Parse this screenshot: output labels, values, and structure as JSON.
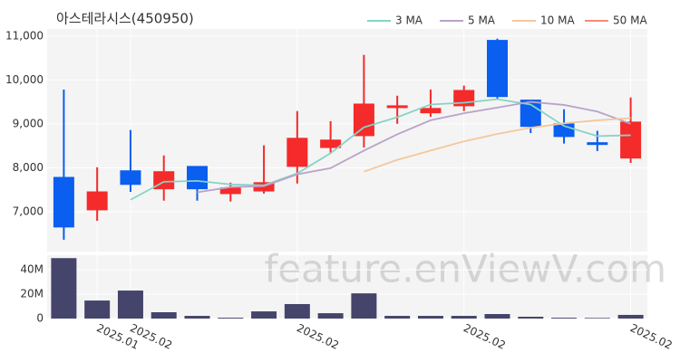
{
  "chart_data": [
    {
      "type": "candlestick",
      "title": "아스테라시스(450950)",
      "categories": [
        null,
        "2025.01",
        "2025.02",
        null,
        null,
        null,
        null,
        "2025.02",
        null,
        null,
        null,
        null,
        "2025.02",
        null,
        null,
        null,
        null,
        "2025.02"
      ],
      "open": [
        7780,
        7040,
        7930,
        7520,
        8030,
        7410,
        7470,
        8030,
        8460,
        8730,
        9370,
        9250,
        9410,
        10900,
        9540,
        9000,
        8570,
        8220
      ],
      "high": [
        9780,
        8010,
        8860,
        8280,
        8030,
        7660,
        8510,
        9290,
        9060,
        10570,
        9640,
        9780,
        9870,
        10940,
        9540,
        9330,
        8840,
        9600
      ],
      "low": [
        6360,
        6790,
        7450,
        7250,
        7250,
        7230,
        7410,
        7640,
        8320,
        8460,
        9000,
        9160,
        9290,
        9560,
        8790,
        8550,
        8380,
        8110
      ],
      "close": [
        6650,
        7450,
        7620,
        7910,
        7520,
        7540,
        7660,
        8670,
        8630,
        9450,
        9410,
        9350,
        9760,
        9620,
        8940,
        8710,
        8560,
        9040
      ],
      "up_color": "#f52a2a",
      "down_color": "#0a5ef0",
      "series": [
        {
          "name": "3 MA",
          "color": "#86d3c6",
          "values": [
            null,
            null,
            7270,
            7680,
            7700,
            7620,
            7600,
            7870,
            8330,
            8920,
            9150,
            9440,
            9480,
            9560,
            9440,
            8950,
            8720,
            8740
          ]
        },
        {
          "name": "5 MA",
          "color": "#b9a3c9",
          "values": [
            null,
            null,
            null,
            null,
            7440,
            7560,
            7580,
            7850,
            7990,
            8390,
            8760,
            9080,
            9240,
            9370,
            9500,
            9430,
            9280,
            9000
          ]
        },
        {
          "name": "10 MA",
          "color": "#f4c79c",
          "values": [
            null,
            null,
            null,
            null,
            null,
            null,
            null,
            null,
            null,
            7910,
            8180,
            8390,
            8600,
            8770,
            8910,
            9010,
            9080,
            9130
          ]
        },
        {
          "name": "50 MA",
          "color": "#f58b7d",
          "values": [
            null,
            null,
            null,
            null,
            null,
            null,
            null,
            null,
            null,
            null,
            null,
            null,
            null,
            null,
            null,
            null,
            null,
            null
          ]
        }
      ],
      "ylim": [
        6090,
        11160
      ],
      "yticks": [
        {
          "value": 7000,
          "label": "7,000"
        },
        {
          "value": 8000,
          "label": "8,000"
        },
        {
          "value": 9000,
          "label": "9,000"
        },
        {
          "value": 10000,
          "label": "10,000"
        },
        {
          "value": 11000,
          "label": "11,000"
        }
      ],
      "grid": true,
      "legend": "top-right"
    },
    {
      "type": "bar",
      "color": "#45456b",
      "values": [
        49600000,
        14800000,
        23000000,
        5200000,
        2200000,
        700000,
        5900000,
        11900000,
        4400000,
        20700000,
        2200000,
        2200000,
        2200000,
        3700000,
        1500000,
        700000,
        500000,
        3000000
      ],
      "ylim": [
        0,
        52000000
      ],
      "yticks": [
        0,
        {
          "value": 20000000,
          "label": "20M"
        },
        {
          "value": 40000000,
          "label": "40M"
        }
      ],
      "watermark": "feature.enViewV.com"
    }
  ]
}
